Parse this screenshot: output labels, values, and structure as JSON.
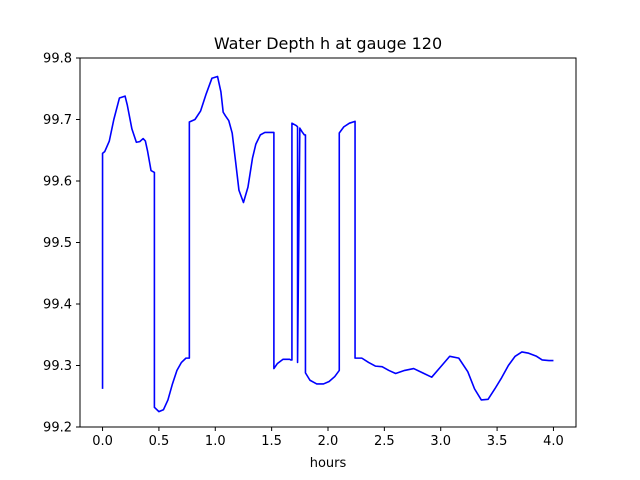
{
  "chart_data": {
    "type": "line",
    "title": "Water Depth h at gauge 120",
    "xlabel": "hours",
    "ylabel": "",
    "xlim": [
      -0.2,
      4.2
    ],
    "ylim": [
      99.2,
      99.8
    ],
    "xticks": [
      0.0,
      0.5,
      1.0,
      1.5,
      2.0,
      2.5,
      3.0,
      3.5,
      4.0
    ],
    "xtick_labels": [
      "0.0",
      "0.5",
      "1.0",
      "1.5",
      "2.0",
      "2.5",
      "3.0",
      "3.5",
      "4.0"
    ],
    "yticks": [
      99.2,
      99.3,
      99.4,
      99.5,
      99.6,
      99.7,
      99.8
    ],
    "ytick_labels": [
      "99.2",
      "99.3",
      "99.4",
      "99.5",
      "99.6",
      "99.7",
      "99.8"
    ],
    "grid": false,
    "series": [
      {
        "color": "#0000ff",
        "x": [
          0.0,
          0.0,
          0.02,
          0.06,
          0.1,
          0.15,
          0.2,
          0.22,
          0.26,
          0.3,
          0.33,
          0.36,
          0.38,
          0.4,
          0.43,
          0.46,
          0.46,
          0.5,
          0.54,
          0.58,
          0.62,
          0.66,
          0.7,
          0.74,
          0.77,
          0.77,
          0.82,
          0.87,
          0.92,
          0.97,
          1.02,
          1.05,
          1.07,
          1.09,
          1.12,
          1.15,
          1.18,
          1.21,
          1.25,
          1.29,
          1.33,
          1.36,
          1.4,
          1.44,
          1.48,
          1.52,
          1.52,
          1.55,
          1.6,
          1.66,
          1.67,
          1.68,
          1.68,
          1.7,
          1.72,
          1.73,
          1.73,
          1.75,
          1.77,
          1.79,
          1.8,
          1.8,
          1.84,
          1.9,
          1.96,
          2.01,
          2.06,
          2.1,
          2.1,
          2.14,
          2.19,
          2.24,
          2.24,
          2.3,
          2.36,
          2.42,
          2.48,
          2.54,
          2.6,
          2.68,
          2.76,
          2.84,
          2.92,
          3.0,
          3.08,
          3.16,
          3.24,
          3.3,
          3.36,
          3.42,
          3.48,
          3.54,
          3.6,
          3.66,
          3.72,
          3.78,
          3.85,
          3.9,
          3.96,
          4.0
        ],
        "y": [
          99.262,
          99.645,
          99.648,
          99.665,
          99.7,
          99.735,
          99.738,
          99.723,
          99.685,
          99.663,
          99.664,
          99.669,
          99.665,
          99.648,
          99.617,
          99.614,
          99.232,
          99.225,
          99.228,
          99.244,
          99.27,
          99.292,
          99.305,
          99.312,
          99.312,
          99.696,
          99.7,
          99.714,
          99.742,
          99.767,
          99.77,
          99.745,
          99.712,
          99.706,
          99.698,
          99.678,
          99.632,
          99.585,
          99.565,
          99.59,
          99.637,
          99.66,
          99.675,
          99.679,
          99.679,
          99.679,
          99.295,
          99.303,
          99.31,
          99.31,
          99.309,
          99.309,
          99.694,
          99.692,
          99.69,
          99.688,
          99.305,
          99.686,
          99.68,
          99.675,
          99.675,
          99.288,
          99.276,
          99.27,
          99.27,
          99.274,
          99.282,
          99.292,
          99.678,
          99.688,
          99.694,
          99.697,
          99.312,
          99.312,
          99.305,
          99.299,
          99.298,
          99.292,
          99.287,
          99.292,
          99.295,
          99.288,
          99.281,
          99.298,
          99.315,
          99.312,
          99.29,
          99.262,
          99.244,
          99.245,
          99.262,
          99.28,
          99.3,
          99.315,
          99.322,
          99.32,
          99.315,
          99.309,
          99.308,
          99.308
        ]
      }
    ]
  }
}
